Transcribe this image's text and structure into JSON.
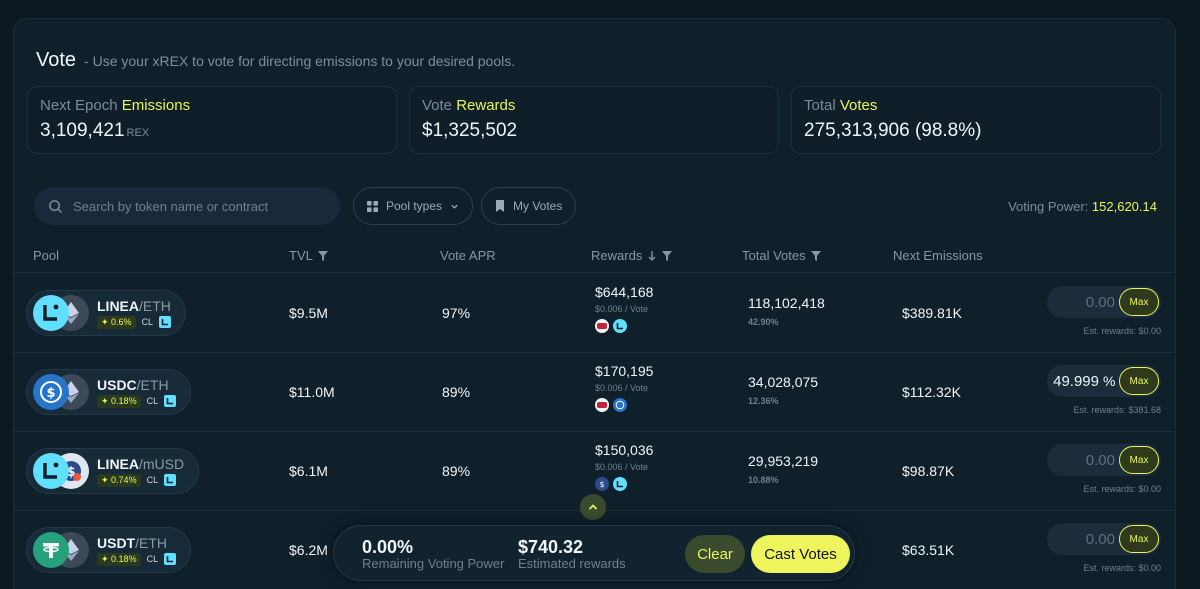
{
  "header": {
    "title": "Vote",
    "subtitle": "- Use your xREX to vote for directing emissions to your desired pools."
  },
  "stats": [
    {
      "label_prefix": "Next Epoch",
      "label_hl": "Emissions",
      "value": "3,109,421",
      "unit": "REX"
    },
    {
      "label_prefix": "Vote",
      "label_hl": "Rewards",
      "value": "$1,325,502",
      "unit": ""
    },
    {
      "label_prefix": "Total",
      "label_hl": "Votes",
      "value": "275,313,906 (98.8%)",
      "unit": ""
    }
  ],
  "search": {
    "placeholder": "Search by token name or contract"
  },
  "filters": {
    "pool_types": "Pool types",
    "my_votes": "My Votes"
  },
  "voting_power": {
    "label": "Voting Power:",
    "value": "152,620.14"
  },
  "columns": {
    "pool": "Pool",
    "tvl": "TVL",
    "apr": "Vote APR",
    "rewards": "Rewards",
    "total_votes": "Total Votes",
    "next_emissions": "Next Emissions"
  },
  "rows": [
    {
      "base": "LINEA",
      "quote": "/ETH",
      "fee": "0.6%",
      "type": "CL",
      "tvl": "$9.5M",
      "apr": "97%",
      "rewards": "$644,168",
      "per_vote": "$0.006 / Vote",
      "votes": "118,102,418",
      "votes_pct": "42.90%",
      "emissions": "$389.81K",
      "vote_value": "0.00",
      "pct": "%",
      "max": "Max",
      "est": "Est. rewards: $0.00"
    },
    {
      "base": "USDC",
      "quote": "/ETH",
      "fee": "0.18%",
      "type": "CL",
      "tvl": "$11.0M",
      "apr": "89%",
      "rewards": "$170,195",
      "per_vote": "$0.006 / Vote",
      "votes": "34,028,075",
      "votes_pct": "12.36%",
      "emissions": "$112.32K",
      "vote_value": "49.999",
      "pct": "%",
      "max": "Max",
      "est": "Est. rewards: $381.68"
    },
    {
      "base": "LINEA",
      "quote": "/mUSD",
      "fee": "0.74%",
      "type": "CL",
      "tvl": "$6.1M",
      "apr": "89%",
      "rewards": "$150,036",
      "per_vote": "$0.006 / Vote",
      "votes": "29,953,219",
      "votes_pct": "10.88%",
      "emissions": "$98.87K",
      "vote_value": "0.00",
      "pct": "%",
      "max": "Max",
      "est": "Est. rewards: $0.00"
    },
    {
      "base": "USDT",
      "quote": "/ETH",
      "fee": "0.18%",
      "type": "CL",
      "tvl": "$6.2M",
      "apr": "",
      "rewards": "",
      "per_vote": "",
      "votes": "",
      "votes_pct": "",
      "emissions": "$63.51K",
      "vote_value": "0.00",
      "pct": "%",
      "max": "Max",
      "est": "Est. rewards: $0.00"
    }
  ],
  "footer": {
    "remaining_value": "0.00%",
    "remaining_label": "Remaining Voting Power",
    "est_value": "$740.32",
    "est_label": "Estimated rewards",
    "clear": "Clear",
    "cast": "Cast Votes"
  },
  "colors": {
    "accent": "#e9f55a",
    "bg": "#0b1820",
    "panel": "#10202b"
  }
}
